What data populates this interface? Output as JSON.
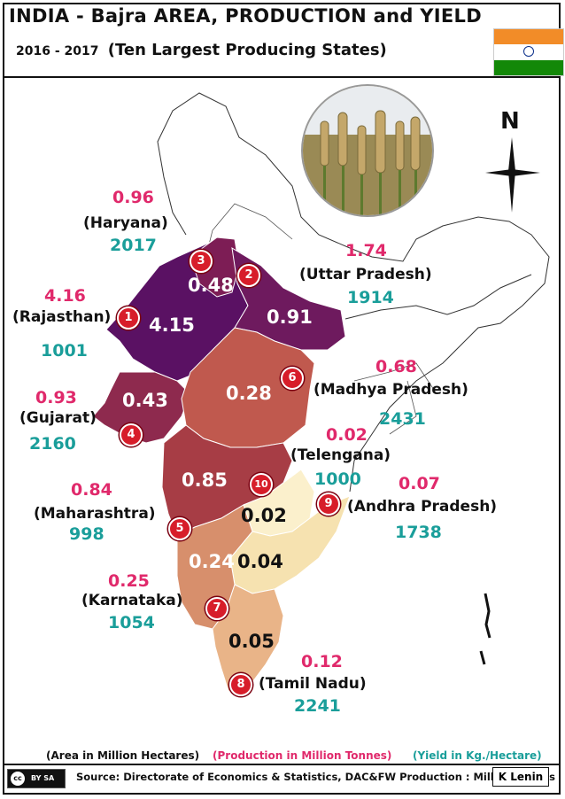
{
  "title": "INDIA - Bajra  AREA, PRODUCTION and  YIELD",
  "subtitle_years": "2016 - 2017",
  "subtitle_text": "(Ten Largest Producing States)",
  "north": "N",
  "states": [
    {
      "rank": "1",
      "name": "(Rajasthan)",
      "area": "4.15",
      "production": "4.16",
      "yield": "1001"
    },
    {
      "rank": "2",
      "name": "(Uttar  Pradesh)",
      "area": "0.91",
      "production": "1.74",
      "yield": "1914"
    },
    {
      "rank": "3",
      "name": "(Haryana)",
      "area": "0.48",
      "production": "0.96",
      "yield": "2017"
    },
    {
      "rank": "4",
      "name": "(Gujarat)",
      "area": "0.43",
      "production": "0.93",
      "yield": "2160"
    },
    {
      "rank": "5",
      "name": "(Maharashtra)",
      "area": "0.85",
      "production": "0.84",
      "yield": "998"
    },
    {
      "rank": "6",
      "name": "(Madhya  Pradesh)",
      "area": "0.28",
      "production": "0.68",
      "yield": "2431"
    },
    {
      "rank": "7",
      "name": "(Karnataka)",
      "area": "0.24",
      "production": "0.25",
      "yield": "1054"
    },
    {
      "rank": "8",
      "name": "(Tamil Nadu)",
      "area": "0.05",
      "production": "0.12",
      "yield": "2241"
    },
    {
      "rank": "9",
      "name": "(Andhra Pradesh)",
      "area": "0.04",
      "production": "0.07",
      "yield": "1738"
    },
    {
      "rank": "10",
      "name": "(Telengana)",
      "area": "0.02",
      "production": "0.02",
      "yield": "1000"
    }
  ],
  "legend": {
    "area": "(Area in Million Hectares)",
    "production": "(Production in Million Tonnes)",
    "yield": "(Yield in Kg./Hectare)"
  },
  "source": "Source: Directorate of Economics & Statistics, DAC&FW  Production : Million Tonnes",
  "license": {
    "cc": "cc",
    "terms": "BY   SA"
  },
  "author": "K Lenin",
  "colors": {
    "production": "#e0296b",
    "yield": "#1a9e9a",
    "rajasthan": "#5a1163",
    "uttar_pradesh": "#6e1a5e",
    "haryana": "#7d1d55",
    "gujarat": "#8e2a4e",
    "madhya_pradesh": "#c0594e",
    "maharashtra": "#a73d45",
    "karnataka": "#d78f6c",
    "tamil_nadu": "#e9b488",
    "andhra_pradesh": "#f6e2b0",
    "telengana": "#fbf0cc",
    "flag_saffron": "#f28c28",
    "flag_green": "#138808"
  }
}
